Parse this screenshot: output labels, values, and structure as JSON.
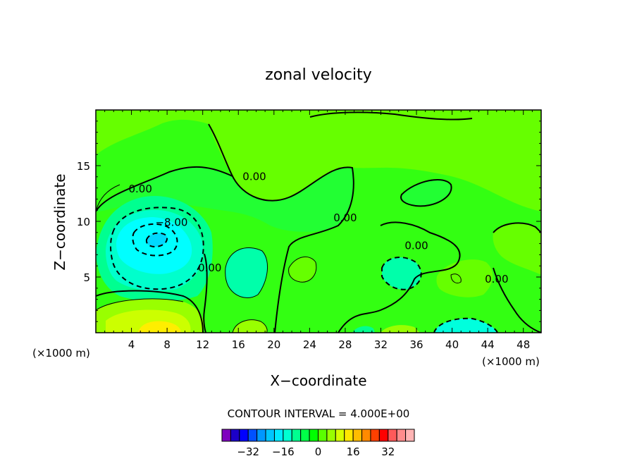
{
  "chart_data": {
    "type": "contour",
    "title": "zonal velocity",
    "xlabel": "X−coordinate",
    "ylabel": "Z−coordinate",
    "x_unit_left": "(×1000 m)",
    "x_unit_right": "(×1000 m)",
    "xlim": [
      0,
      50
    ],
    "ylim": [
      0,
      20
    ],
    "x_ticks": [
      4,
      8,
      12,
      16,
      20,
      24,
      28,
      32,
      36,
      40,
      44,
      48
    ],
    "y_ticks": [
      5,
      10,
      15
    ],
    "contour_interval_text": "CONTOUR INTERVAL = 4.000E+00",
    "contour_labels": [
      {
        "text": "0.00",
        "x": 5.0,
        "y": 12.6
      },
      {
        "text": "0.00",
        "x": 17.8,
        "y": 13.7
      },
      {
        "text": "−8.00",
        "x": 8.5,
        "y": 9.6
      },
      {
        "text": "0.00",
        "x": 28.0,
        "y": 10.0
      },
      {
        "text": "0.00",
        "x": 36.0,
        "y": 7.5
      },
      {
        "text": "0.00",
        "x": 12.8,
        "y": 5.5
      },
      {
        "text": "0.00",
        "x": 45.0,
        "y": 4.5
      }
    ],
    "colorbar": {
      "colors": [
        "#7f00bf",
        "#1c00c8",
        "#0000ff",
        "#0051ff",
        "#0097ff",
        "#00c6ff",
        "#00eaff",
        "#00ffd2",
        "#00ff90",
        "#00ff48",
        "#00ff00",
        "#5aff00",
        "#99ff00",
        "#d7ff00",
        "#ffe600",
        "#ffbc00",
        "#ff8a00",
        "#ff4000",
        "#ff0000",
        "#ff5a5a",
        "#ff8c8c",
        "#ffb4b4"
      ],
      "tick_labels": [
        "−32",
        "−16",
        "0",
        "16",
        "32"
      ],
      "tick_values": [
        -32,
        -16,
        0,
        16,
        32
      ]
    },
    "regions": [
      {
        "name": "background",
        "color": "#33ff12"
      },
      {
        "name": "upper-band",
        "color": "#66ff00"
      },
      {
        "name": "upper-mid-band",
        "color": "#22ff33"
      },
      {
        "name": "left-negative-outer",
        "color": "#00ff90"
      },
      {
        "name": "left-negative-mid",
        "color": "#00ffcc"
      },
      {
        "name": "left-negative-core",
        "color": "#00ffff"
      },
      {
        "name": "left-negative-peak",
        "color": "#00d9ff"
      },
      {
        "name": "bottom-left-positive",
        "color": "#99ff00"
      },
      {
        "name": "bottom-left-positive-mid",
        "color": "#ccff00"
      },
      {
        "name": "bottom-left-positive-peak",
        "color": "#ffee00"
      },
      {
        "name": "right-negative",
        "color": "#00ffdd"
      },
      {
        "name": "mid-negative",
        "color": "#00ffaa"
      },
      {
        "name": "right-upper-positive",
        "color": "#66ff00"
      }
    ]
  }
}
